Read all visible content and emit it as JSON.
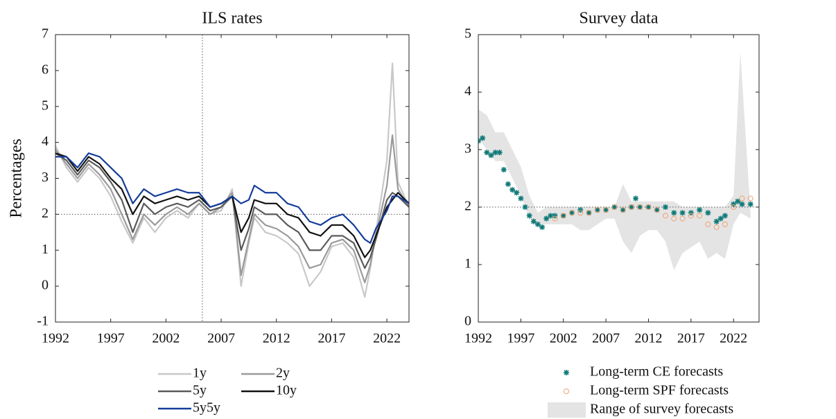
{
  "chart_data": [
    {
      "type": "line",
      "title": "ILS rates",
      "y_label": "Percentages",
      "x": [
        1992,
        1993,
        1994,
        1995,
        1996,
        1997,
        1998,
        1999,
        2000,
        2001,
        2002,
        2003,
        2004,
        2005,
        2006,
        2007,
        2008,
        2008.8,
        2009.5,
        2010,
        2011,
        2012,
        2013,
        2014,
        2015,
        2016,
        2017,
        2018,
        2019,
        2020,
        2020.5,
        2021,
        2022,
        2022.5,
        2023,
        2024
      ],
      "series": [
        {
          "name": "1y",
          "color": "#c8c8c8",
          "values": [
            3.9,
            3.3,
            2.9,
            3.3,
            3.0,
            2.5,
            1.8,
            1.2,
            1.9,
            1.5,
            1.9,
            2.1,
            1.9,
            2.3,
            2.0,
            2.1,
            2.7,
            0.0,
            1.2,
            1.9,
            1.5,
            1.4,
            1.2,
            0.9,
            0.0,
            0.4,
            1.1,
            1.2,
            0.8,
            -0.3,
            0.5,
            1.5,
            3.5,
            6.2,
            2.9,
            2.2
          ]
        },
        {
          "name": "2y",
          "color": "#9a9a9a",
          "values": [
            3.8,
            3.4,
            3.0,
            3.4,
            3.1,
            2.7,
            2.0,
            1.3,
            2.0,
            1.7,
            2.0,
            2.2,
            2.0,
            2.3,
            2.0,
            2.2,
            2.6,
            0.3,
            1.3,
            2.0,
            1.7,
            1.6,
            1.4,
            1.1,
            0.5,
            0.6,
            1.2,
            1.3,
            1.0,
            0.1,
            0.6,
            1.4,
            2.8,
            4.2,
            2.7,
            2.2
          ]
        },
        {
          "name": "5y",
          "color": "#5a5a5a",
          "values": [
            3.7,
            3.5,
            3.1,
            3.5,
            3.3,
            2.9,
            2.4,
            1.5,
            2.3,
            2.0,
            2.2,
            2.3,
            2.2,
            2.4,
            2.1,
            2.2,
            2.5,
            1.0,
            1.6,
            2.2,
            2.0,
            2.0,
            1.7,
            1.5,
            1.0,
            1.0,
            1.4,
            1.4,
            1.2,
            0.5,
            0.8,
            1.3,
            2.4,
            2.6,
            2.5,
            2.2
          ]
        },
        {
          "name": "10y",
          "color": "#111111",
          "values": [
            3.7,
            3.6,
            3.2,
            3.6,
            3.4,
            3.0,
            2.7,
            2.0,
            2.5,
            2.3,
            2.4,
            2.5,
            2.4,
            2.5,
            2.2,
            2.3,
            2.5,
            1.5,
            1.9,
            2.4,
            2.3,
            2.3,
            2.0,
            1.9,
            1.5,
            1.4,
            1.7,
            1.7,
            1.4,
            0.8,
            1.0,
            1.4,
            2.2,
            2.4,
            2.6,
            2.3
          ]
        },
        {
          "name": "5y5y",
          "color": "#143c9a",
          "values": [
            3.6,
            3.6,
            3.3,
            3.7,
            3.6,
            3.3,
            3.0,
            2.3,
            2.7,
            2.5,
            2.6,
            2.7,
            2.6,
            2.6,
            2.2,
            2.3,
            2.5,
            2.3,
            2.4,
            2.8,
            2.6,
            2.6,
            2.3,
            2.2,
            1.8,
            1.7,
            1.9,
            2.0,
            1.7,
            1.3,
            1.2,
            1.6,
            2.1,
            2.5,
            2.5,
            2.3
          ]
        }
      ],
      "xlim": [
        1992,
        2024
      ],
      "xticks": [
        1992,
        1997,
        2002,
        2007,
        2012,
        2017,
        2022
      ],
      "ylim": [
        -1,
        7
      ],
      "yticks": [
        -1,
        0,
        1,
        2,
        3,
        4,
        5,
        6,
        7
      ],
      "hline": 2,
      "vline": 2005.3,
      "legend": "bottom-two-columns"
    },
    {
      "type": "scatter",
      "title": "Survey data",
      "series": [
        {
          "name": "Long-term CE forecasts",
          "kind": "star",
          "color": "#0f7a78",
          "x": [
            1992,
            1992.5,
            1993,
            1993.5,
            1994,
            1994.5,
            1995,
            1995.5,
            1996,
            1996.5,
            1997,
            1997.5,
            1998,
            1998.5,
            1999,
            1999.5,
            2000,
            2000.5,
            2001,
            2002,
            2003,
            2004,
            2005,
            2006,
            2007,
            2008,
            2009,
            2010,
            2010.5,
            2011,
            2012,
            2013,
            2014,
            2015,
            2016,
            2017,
            2018,
            2019,
            2020,
            2020.5,
            2021,
            2022,
            2022.5,
            2023,
            2024
          ],
          "values": [
            3.15,
            3.2,
            2.95,
            2.9,
            2.95,
            2.95,
            2.65,
            2.4,
            2.3,
            2.25,
            2.15,
            2.0,
            1.85,
            1.75,
            1.7,
            1.65,
            1.8,
            1.85,
            1.85,
            1.85,
            1.9,
            1.95,
            1.9,
            1.95,
            1.95,
            2.0,
            1.95,
            2.0,
            2.15,
            2.0,
            2.0,
            1.95,
            2.0,
            1.9,
            1.9,
            1.9,
            1.95,
            1.9,
            1.75,
            1.8,
            1.85,
            2.05,
            2.1,
            2.05,
            2.05
          ]
        },
        {
          "name": "Long-term SPF forecasts",
          "kind": "circle",
          "color": "#f0a070",
          "x": [
            2001,
            2002,
            2003,
            2004,
            2005,
            2006,
            2007,
            2008,
            2009,
            2010,
            2011,
            2012,
            2013,
            2014,
            2015,
            2016,
            2017,
            2018,
            2019,
            2020,
            2021,
            2022,
            2023,
            2024
          ],
          "values": [
            1.8,
            1.85,
            1.9,
            1.9,
            1.9,
            1.95,
            1.95,
            2.0,
            1.95,
            2.0,
            2.0,
            2.0,
            1.95,
            1.85,
            1.8,
            1.8,
            1.85,
            1.85,
            1.7,
            1.65,
            1.7,
            2.0,
            2.15,
            2.15
          ]
        },
        {
          "name": "Range of survey forecasts",
          "kind": "area",
          "color": "#e4e4e4",
          "x": [
            1992,
            1993,
            1994,
            1995,
            1996,
            1997,
            1998,
            1999,
            2000,
            2001,
            2002,
            2003,
            2004,
            2005,
            2006,
            2007,
            2008,
            2009,
            2010,
            2011,
            2012,
            2013,
            2014,
            2015,
            2016,
            2017,
            2018,
            2019,
            2020,
            2021,
            2022,
            2022.8,
            2024
          ],
          "lower": [
            3.2,
            3.0,
            2.8,
            2.8,
            2.5,
            2.2,
            1.8,
            1.7,
            1.7,
            1.7,
            1.7,
            1.7,
            1.6,
            1.6,
            1.7,
            1.8,
            1.8,
            1.4,
            1.2,
            1.5,
            1.6,
            1.6,
            1.4,
            0.9,
            1.2,
            1.3,
            1.4,
            1.1,
            1.2,
            1.1,
            1.7,
            1.9,
            1.8
          ],
          "values": [
            3.7,
            3.6,
            3.3,
            3.3,
            3.0,
            2.7,
            2.2,
            1.9,
            2.0,
            2.0,
            2.0,
            2.0,
            2.0,
            2.0,
            2.0,
            2.0,
            2.0,
            2.4,
            2.1,
            2.1,
            2.1,
            2.1,
            2.1,
            2.1,
            2.0,
            2.0,
            2.0,
            2.0,
            2.0,
            2.0,
            2.2,
            4.7,
            1.9
          ]
        }
      ],
      "xlim": [
        1992,
        2025
      ],
      "xticks": [
        1992,
        1997,
        2002,
        2007,
        2012,
        2017,
        2022
      ],
      "ylim": [
        0,
        5
      ],
      "yticks": [
        0,
        1,
        2,
        3,
        4,
        5
      ],
      "hline": 2,
      "legend": "bottom-stacked"
    }
  ]
}
